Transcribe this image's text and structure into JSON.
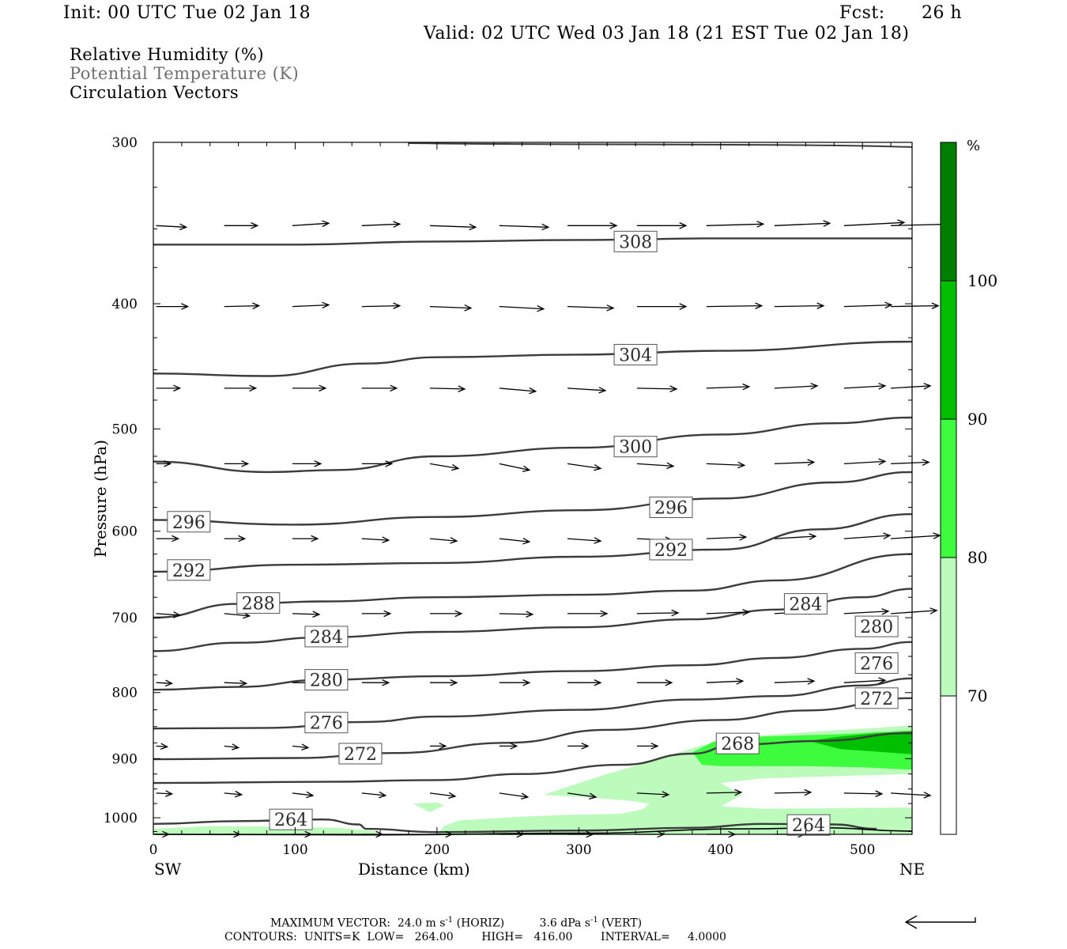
{
  "header": {
    "init": "Init: 00 UTC Tue 02 Jan 18",
    "fcst_label": "Fcst:",
    "fcst_value": "26 h",
    "valid": "Valid: 02 UTC Wed 03 Jan 18 (21 EST Tue 02 Jan 18)"
  },
  "fields": {
    "rh": "Relative Humidity (%)",
    "theta": "Potential Temperature (K)",
    "vectors": "Circulation Vectors"
  },
  "colors": {
    "rh70": "#bdfbbd",
    "rh80": "#3dfb3d",
    "rh90": "#00bf00",
    "rh100": "#007f00",
    "contour": "#3c3c3c",
    "vector": "#000000"
  },
  "chart_data": {
    "type": "cross-section",
    "xlabel": "Distance (km)",
    "ylabel": "Pressure (hPa)",
    "x_ticks": [
      0,
      100,
      200,
      300,
      400,
      500
    ],
    "y_ticks": [
      300,
      400,
      500,
      600,
      700,
      800,
      900,
      1000
    ],
    "xlim": [
      0,
      535
    ],
    "ylim": [
      1030,
      300
    ],
    "y_scale": "log",
    "x_endpoint_left": "SW",
    "x_endpoint_right": "NE",
    "colorbar": {
      "unit": "%",
      "levels": [
        70,
        80,
        90,
        100
      ],
      "colors": [
        "#ffffff",
        "#bdfbbd",
        "#3dfb3d",
        "#00bf00",
        "#007f00"
      ]
    },
    "theta_contours": [
      {
        "value": 308,
        "label": "308",
        "points": [
          [
            0,
            360
          ],
          [
            100,
            360
          ],
          [
            200,
            358
          ],
          [
            300,
            357
          ],
          [
            400,
            356
          ],
          [
            535,
            356
          ]
        ],
        "labels": [
          [
            340,
            358
          ]
        ]
      },
      {
        "value": 304,
        "label": "304",
        "points": [
          [
            0,
            453
          ],
          [
            80,
            455
          ],
          [
            150,
            445
          ],
          [
            200,
            440
          ],
          [
            300,
            438
          ],
          [
            400,
            435
          ],
          [
            535,
            428
          ]
        ],
        "labels": [
          [
            340,
            438
          ]
        ]
      },
      {
        "value": 300,
        "label": "300",
        "points": [
          [
            0,
            530
          ],
          [
            80,
            540
          ],
          [
            130,
            538
          ],
          [
            200,
            525
          ],
          [
            300,
            517
          ],
          [
            400,
            505
          ],
          [
            480,
            495
          ],
          [
            535,
            490
          ]
        ],
        "labels": [
          [
            340,
            516
          ]
        ]
      },
      {
        "value": 296,
        "label": "296",
        "points": [
          [
            0,
            588
          ],
          [
            100,
            593
          ],
          [
            200,
            585
          ],
          [
            300,
            578
          ],
          [
            400,
            566
          ],
          [
            480,
            550
          ],
          [
            535,
            540
          ]
        ],
        "labels": [
          [
            25,
            590
          ],
          [
            365,
            575
          ]
        ]
      },
      {
        "value": 292,
        "label": "292",
        "points": [
          [
            0,
            645
          ],
          [
            100,
            637
          ],
          [
            200,
            635
          ],
          [
            300,
            628
          ],
          [
            400,
            620
          ],
          [
            470,
            598
          ],
          [
            535,
            582
          ]
        ],
        "labels": [
          [
            25,
            643
          ],
          [
            365,
            620
          ]
        ]
      },
      {
        "value": 288,
        "label": "288",
        "points": [
          [
            0,
            700
          ],
          [
            60,
            683
          ],
          [
            120,
            680
          ],
          [
            200,
            675
          ],
          [
            300,
            672
          ],
          [
            380,
            667
          ],
          [
            440,
            655
          ],
          [
            535,
            625
          ]
        ],
        "labels": [
          [
            74,
            682
          ]
        ]
      },
      {
        "value": 284,
        "label": "284",
        "points": [
          [
            0,
            743
          ],
          [
            60,
            732
          ],
          [
            120,
            725
          ],
          [
            200,
            718
          ],
          [
            300,
            712
          ],
          [
            380,
            702
          ],
          [
            440,
            690
          ],
          [
            500,
            675
          ],
          [
            535,
            665
          ]
        ],
        "labels": [
          [
            122,
            724
          ],
          [
            460,
            683
          ]
        ]
      },
      {
        "value": 280,
        "label": "280",
        "points": [
          [
            0,
            796
          ],
          [
            60,
            792
          ],
          [
            120,
            782
          ],
          [
            200,
            777
          ],
          [
            300,
            770
          ],
          [
            380,
            762
          ],
          [
            440,
            752
          ],
          [
            500,
            740
          ],
          [
            535,
            731
          ]
        ],
        "labels": [
          [
            122,
            782
          ],
          [
            510,
            711
          ]
        ]
      },
      {
        "value": 276,
        "label": "276",
        "points": [
          [
            0,
            853
          ],
          [
            80,
            852
          ],
          [
            150,
            843
          ],
          [
            200,
            835
          ],
          [
            300,
            825
          ],
          [
            380,
            810
          ],
          [
            440,
            805
          ],
          [
            500,
            790
          ],
          [
            535,
            780
          ]
        ],
        "labels": [
          [
            122,
            844
          ],
          [
            510,
            759
          ]
        ]
      },
      {
        "value": 272,
        "label": "272",
        "points": [
          [
            0,
            901
          ],
          [
            100,
            899
          ],
          [
            170,
            891
          ],
          [
            250,
            875
          ],
          [
            320,
            855
          ],
          [
            400,
            840
          ],
          [
            460,
            826
          ],
          [
            535,
            808
          ]
        ],
        "labels": [
          [
            146,
            892
          ],
          [
            510,
            808
          ]
        ]
      },
      {
        "value": 268,
        "label": "268",
        "points": [
          [
            0,
            940
          ],
          [
            120,
            938
          ],
          [
            200,
            935
          ],
          [
            260,
            925
          ],
          [
            330,
            910
          ],
          [
            380,
            892
          ],
          [
            410,
            878
          ],
          [
            470,
            872
          ],
          [
            535,
            860
          ]
        ],
        "labels": [
          [
            412,
            876
          ]
        ]
      },
      {
        "value": 264,
        "label": "264",
        "points": [
          [
            0,
            1011
          ],
          [
            60,
            1006
          ],
          [
            120,
            1003
          ],
          [
            145,
            1012
          ],
          [
            150,
            1020
          ],
          [
            200,
            1026
          ],
          [
            300,
            1023
          ],
          [
            380,
            1018
          ],
          [
            430,
            1011
          ],
          [
            480,
            1012
          ],
          [
            510,
            1020
          ]
        ],
        "labels": [
          [
            97,
            1003
          ],
          [
            462,
            1013
          ]
        ]
      }
    ],
    "theta_surface_line": [
      [
        0,
        1030
      ],
      [
        150,
        1031
      ],
      [
        300,
        1028
      ],
      [
        420,
        1020
      ],
      [
        470,
        1018
      ],
      [
        535,
        1024
      ]
    ],
    "rh_regions": [
      {
        "level": 70,
        "polygon": [
          [
            200,
            1030
          ],
          [
            205,
            1015
          ],
          [
            215,
            1005
          ],
          [
            260,
            998
          ],
          [
            290,
            995
          ],
          [
            330,
            993
          ],
          [
            345,
            985
          ],
          [
            350,
            975
          ],
          [
            335,
            970
          ],
          [
            315,
            966
          ],
          [
            290,
            962
          ],
          [
            275,
            960
          ],
          [
            300,
            940
          ],
          [
            320,
            925
          ],
          [
            350,
            905
          ],
          [
            385,
            880
          ],
          [
            420,
            865
          ],
          [
            470,
            857
          ],
          [
            510,
            852
          ],
          [
            535,
            848
          ],
          [
            535,
            925
          ],
          [
            430,
            932
          ],
          [
            400,
            940
          ],
          [
            415,
            960
          ],
          [
            400,
            980
          ],
          [
            430,
            984
          ],
          [
            535,
            982
          ],
          [
            535,
            1030
          ]
        ]
      },
      {
        "level": 70,
        "polygon": [
          [
            0,
            1030
          ],
          [
            0,
            1020
          ],
          [
            40,
            1015
          ],
          [
            80,
            1016
          ],
          [
            130,
            1018
          ],
          [
            160,
            1025
          ],
          [
            155,
            1030
          ]
        ]
      },
      {
        "level": 70,
        "polygon": [
          [
            183,
            975
          ],
          [
            200,
            973
          ],
          [
            205,
            978
          ],
          [
            195,
            990
          ]
        ]
      },
      {
        "level": 80,
        "polygon": [
          [
            380,
            890
          ],
          [
            395,
            873
          ],
          [
            430,
            865
          ],
          [
            480,
            862
          ],
          [
            535,
            856
          ],
          [
            535,
            918
          ],
          [
            500,
            914
          ],
          [
            460,
            912
          ],
          [
            400,
            912
          ],
          [
            387,
            910
          ]
        ]
      },
      {
        "level": 90,
        "polygon": [
          [
            462,
            872
          ],
          [
            485,
            865
          ],
          [
            510,
            860
          ],
          [
            535,
            857
          ],
          [
            535,
            893
          ],
          [
            505,
            888
          ],
          [
            485,
            885
          ]
        ]
      }
    ],
    "vector_max": {
      "horiz": "24.0 m s-1",
      "vert": "3.6 dPa s-1"
    },
    "contour_units": "K",
    "contour_low": 264.0,
    "contour_high": 416.0,
    "contour_interval": 4.0
  },
  "footer": {
    "max_prefix": "MAXIMUM VECTOR:  24.0 m s",
    "max_exp1": "-1",
    "max_mid": " (HORIZ)          3.6 dPa s",
    "max_exp2": "-1",
    "max_suffix": " (VERT)",
    "contours": "CONTOURS:  UNITS=K  LOW=   264.00        HIGH=   416.00        INTERVAL=     4.0000"
  }
}
